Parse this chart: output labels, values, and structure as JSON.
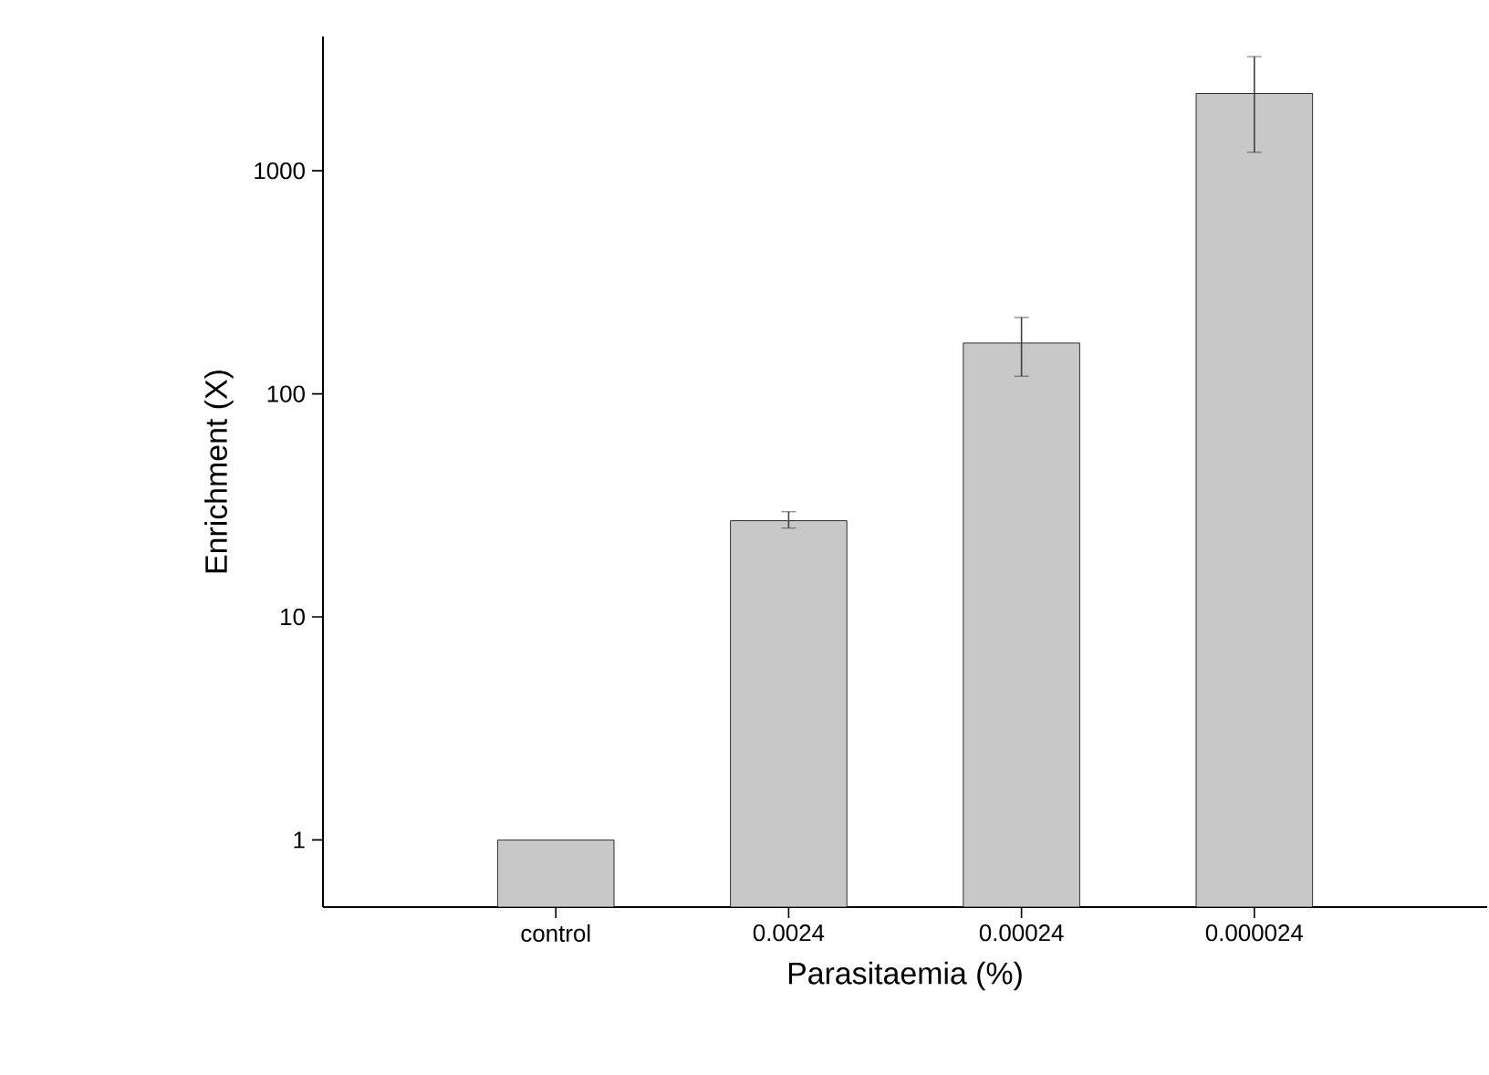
{
  "chart_data": {
    "type": "bar",
    "xlabel": "Parasitaemia (%)",
    "ylabel": "Enrichment (X)",
    "categories": [
      "control",
      "0.0024",
      "0.00024",
      "0.000024"
    ],
    "values": [
      1,
      27,
      169,
      2220
    ],
    "errors": [
      null,
      [
        25,
        29.6
      ],
      [
        120,
        220
      ],
      [
        1210,
        3250
      ]
    ],
    "color": "#c8c8c8",
    "log": true,
    "ylim": [
      0.5,
      4000
    ],
    "yticks": [
      1,
      10,
      100,
      1000
    ]
  }
}
